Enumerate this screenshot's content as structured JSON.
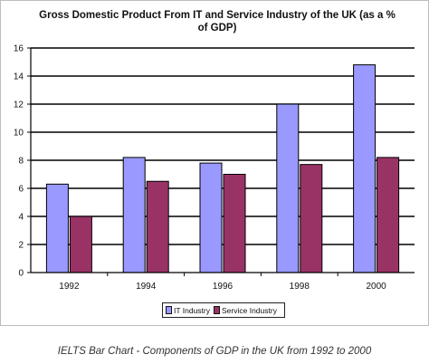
{
  "chart_data": {
    "type": "bar",
    "title": "Gross Domestic Product From IT and Service Industry of the UK (as a % of GDP)",
    "xlabel": "",
    "ylabel": "",
    "categories": [
      "1992",
      "1994",
      "1996",
      "1998",
      "2000"
    ],
    "series": [
      {
        "name": "IT Industry",
        "values": [
          6.3,
          8.2,
          7.8,
          12.0,
          14.8
        ],
        "color": "#9999ff"
      },
      {
        "name": "Service Industry",
        "values": [
          4.0,
          6.5,
          7.0,
          7.7,
          8.2
        ],
        "color": "#993366"
      }
    ],
    "ylim": [
      0,
      16
    ],
    "yticks": [
      "0",
      "2",
      "4",
      "6",
      "8",
      "10",
      "12",
      "14",
      "16"
    ],
    "grid": "horizontal",
    "legend_position": "bottom"
  },
  "caption": "IELTS Bar Chart - Components of GDP in the UK from 1992 to 2000"
}
